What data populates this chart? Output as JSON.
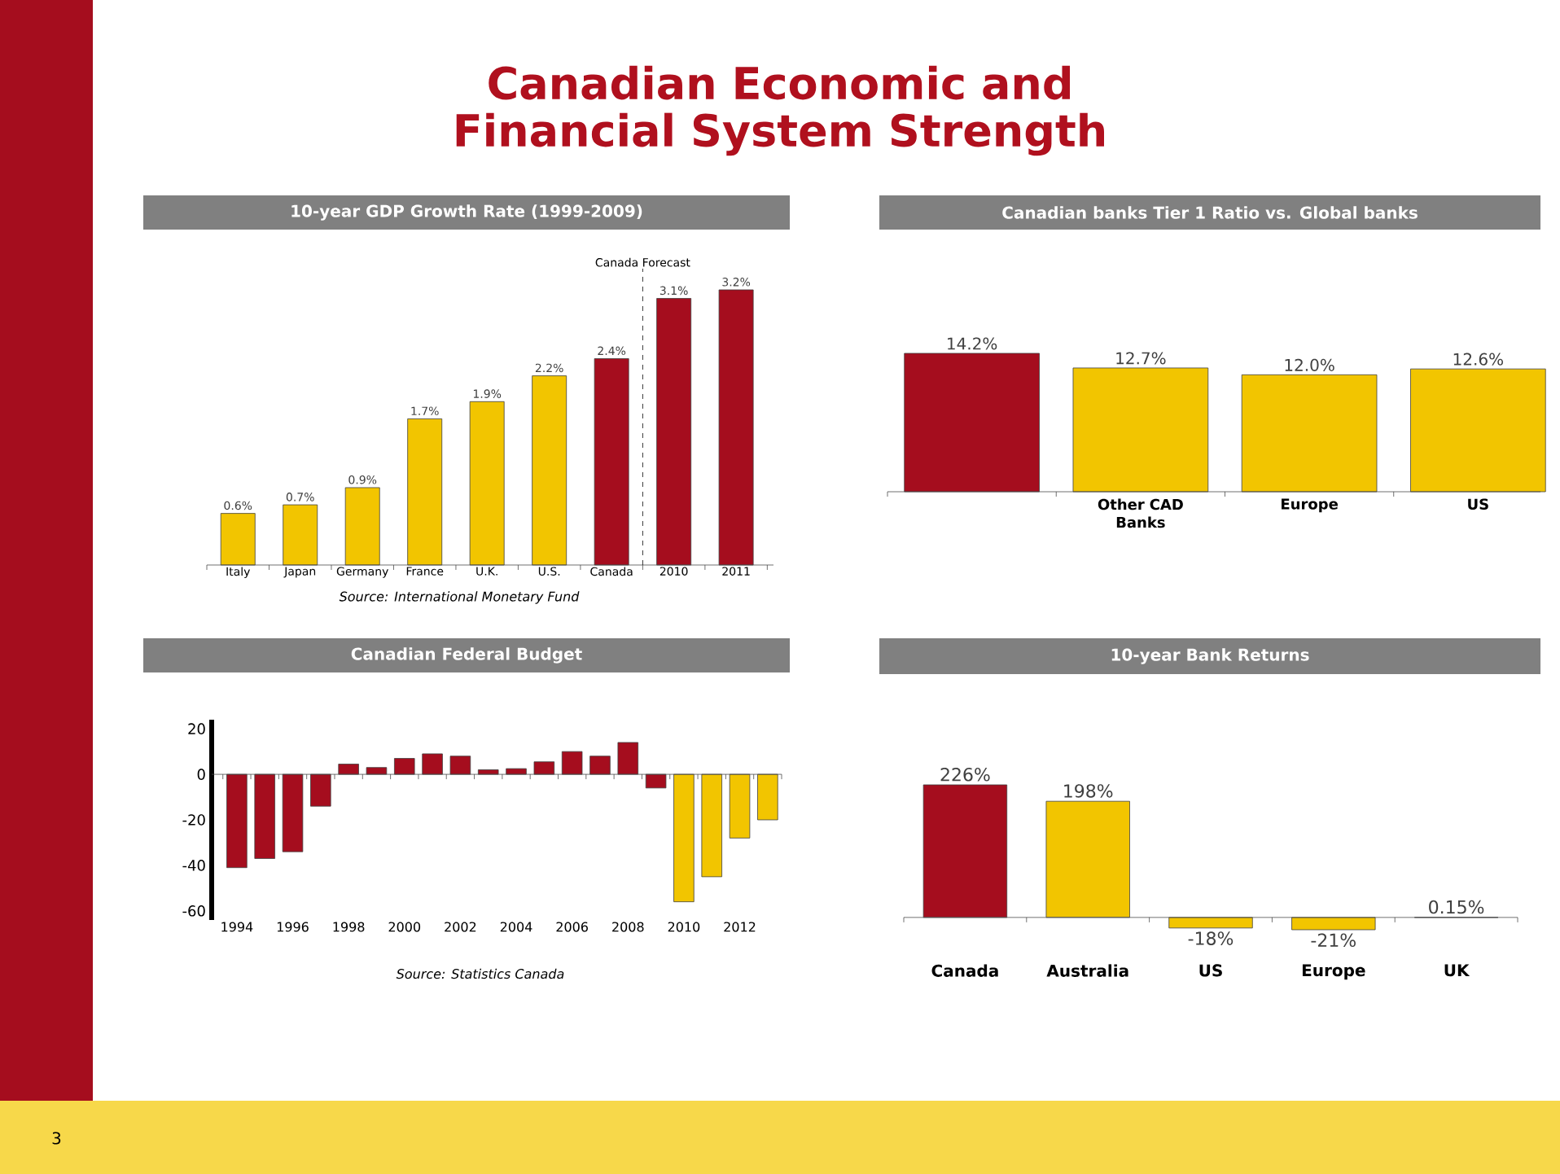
{
  "chart_data": [
    {
      "type": "other",
      "title": "Canadian Economic and Financial System Strength",
      "annotations": [
        "3"
      ]
    },
    {
      "type": "bar",
      "title": "10-year GDP Growth Rate (1999-2009)",
      "categories": [
        "Italy",
        "Japan",
        "Germany",
        "France",
        "U.K.",
        "U.S.",
        "Canada",
        "2010",
        "2011"
      ],
      "values": [
        0.6,
        0.7,
        0.9,
        1.7,
        1.9,
        2.2,
        2.4,
        3.1,
        3.2
      ],
      "value_labels": [
        "0.6%",
        "0.7%",
        "0.9%",
        "1.7%",
        "1.9%",
        "2.2%",
        "2.4%",
        "3.1%",
        "3.2%"
      ],
      "colors": [
        "#f2c500",
        "#f2c500",
        "#f2c500",
        "#f2c500",
        "#f2c500",
        "#f2c500",
        "#a50d1e",
        "#a50d1e",
        "#a50d1e"
      ],
      "tick_labels": "x",
      "annotations": [
        "Canada Forecast",
        "Source:  International Monetary Fund"
      ]
    },
    {
      "type": "bar",
      "title": "Canadian banks Tier 1 Ratio vs. Global banks",
      "categories": [
        null,
        "Other CAD Banks",
        "Europe",
        "US"
      ],
      "values": [
        14.2,
        12.7,
        12.0,
        12.6
      ],
      "value_labels": [
        "14.2%",
        "12.7%",
        "12.0%",
        "12.6%"
      ],
      "colors": [
        "#a50d1e",
        "#f2c500",
        "#f2c500",
        "#f2c500"
      ],
      "tick_labels": "x"
    },
    {
      "type": "bar",
      "title": "Canadian Federal Budget",
      "categories": [
        "1994",
        null,
        "1996",
        null,
        "1998",
        null,
        "2000",
        null,
        "2002",
        null,
        "2004",
        null,
        "2006",
        null,
        "2008",
        null,
        "2010",
        null,
        "2012",
        null
      ],
      "values": [
        -41,
        -37,
        -34,
        -14,
        4.5,
        3,
        7,
        9,
        8,
        2,
        2.5,
        5.5,
        10,
        8,
        14,
        -6,
        -56,
        -45,
        -28,
        -20
      ],
      "colors": [
        "#a50d1e",
        "#a50d1e",
        "#a50d1e",
        "#a50d1e",
        "#a50d1e",
        "#a50d1e",
        "#a50d1e",
        "#a50d1e",
        "#a50d1e",
        "#a50d1e",
        "#a50d1e",
        "#a50d1e",
        "#a50d1e",
        "#a50d1e",
        "#a50d1e",
        "#a50d1e",
        "#f2c500",
        "#f2c500",
        "#f2c500",
        "#f2c500"
      ],
      "ylim": [
        -64,
        24
      ],
      "yticks": [
        -60,
        -40,
        -20,
        0,
        20
      ],
      "annotations": [
        "Source:  Statistics Canada"
      ]
    },
    {
      "type": "bar",
      "title": "10-year Bank Returns",
      "categories": [
        "Canada",
        "Australia",
        "US",
        "Europe",
        "UK"
      ],
      "values": [
        226,
        198,
        -18,
        -21,
        0.15
      ],
      "value_labels": [
        "226%",
        "198%",
        "-18%",
        "-21%",
        "0.15%"
      ],
      "colors": [
        "#a50d1e",
        "#f2c500",
        "#f2c500",
        "#f2c500",
        "#f2c500"
      ],
      "tick_labels": "x"
    }
  ]
}
